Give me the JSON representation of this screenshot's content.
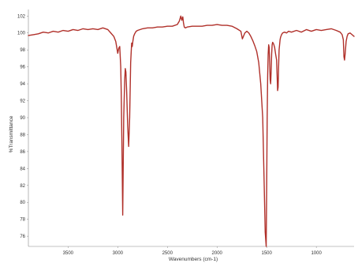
{
  "chart_data": {
    "type": "line",
    "title": "",
    "xlabel": "Wavenumbers (cm-1)",
    "ylabel": "%Transmittance",
    "xlim": [
      3900,
      620
    ],
    "ylim": [
      74.8,
      102.4
    ],
    "x_reversed": true,
    "x_ticks": [
      3500,
      3000,
      2500,
      2000,
      1500,
      1000
    ],
    "y_ticks": [
      76,
      78,
      80,
      82,
      84,
      86,
      88,
      90,
      92,
      94,
      96,
      98,
      100,
      102
    ],
    "grid": false,
    "legend": "none",
    "line_color": "#b0302a",
    "series": [
      {
        "x": [
          3900,
          3850,
          3800,
          3750,
          3700,
          3650,
          3600,
          3550,
          3500,
          3450,
          3400,
          3350,
          3300,
          3250,
          3200,
          3150,
          3100,
          3070,
          3040,
          3020,
          3000,
          2990,
          2980,
          2970,
          2965,
          2958,
          2950,
          2940,
          2930,
          2924,
          2918,
          2910,
          2900,
          2890,
          2880,
          2870,
          2860,
          2854,
          2848,
          2840,
          2830,
          2815,
          2800,
          2750,
          2700,
          2650,
          2600,
          2550,
          2500,
          2450,
          2400,
          2380,
          2365,
          2355,
          2345,
          2338,
          2330,
          2320,
          2300,
          2250,
          2200,
          2150,
          2100,
          2050,
          2000,
          1950,
          1900,
          1850,
          1800,
          1760,
          1745,
          1720,
          1700,
          1680,
          1660,
          1640,
          1620,
          1600,
          1580,
          1560,
          1540,
          1525,
          1515,
          1505,
          1500,
          1495,
          1490,
          1485,
          1480,
          1475,
          1470,
          1465,
          1460,
          1455,
          1450,
          1445,
          1440,
          1430,
          1420,
          1410,
          1400,
          1395,
          1390,
          1385,
          1380,
          1375,
          1370,
          1365,
          1360,
          1350,
          1340,
          1320,
          1300,
          1280,
          1250,
          1200,
          1150,
          1100,
          1050,
          1000,
          950,
          900,
          850,
          800,
          760,
          740,
          728,
          722,
          716,
          710,
          700,
          690,
          680,
          660,
          640,
          620
        ],
        "y": [
          99.7,
          99.8,
          99.9,
          100.1,
          100.0,
          100.2,
          100.1,
          100.3,
          100.2,
          100.4,
          100.3,
          100.5,
          100.4,
          100.5,
          100.4,
          100.6,
          100.4,
          100.0,
          99.6,
          99.0,
          97.6,
          98.2,
          98.4,
          96.0,
          93.0,
          87.0,
          78.5,
          90.0,
          94.5,
          95.8,
          95.4,
          93.0,
          89.0,
          86.6,
          90.0,
          96.5,
          98.8,
          98.4,
          99.0,
          99.6,
          99.9,
          100.2,
          100.3,
          100.5,
          100.6,
          100.6,
          100.7,
          100.7,
          100.8,
          100.8,
          101.0,
          101.4,
          102.0,
          101.5,
          101.9,
          101.2,
          100.7,
          100.6,
          100.7,
          100.8,
          100.8,
          100.8,
          100.9,
          100.9,
          101.0,
          100.9,
          100.9,
          100.8,
          100.5,
          100.2,
          99.3,
          100.0,
          100.2,
          100.0,
          99.6,
          99.1,
          98.5,
          97.8,
          96.5,
          94.0,
          90.0,
          82.0,
          76.5,
          74.8,
          82.0,
          90.0,
          95.0,
          97.5,
          98.6,
          98.3,
          96.5,
          94.5,
          94.0,
          95.5,
          97.5,
          98.6,
          98.9,
          98.7,
          98.3,
          97.5,
          96.8,
          95.0,
          93.2,
          93.6,
          96.0,
          98.0,
          98.6,
          99.2,
          99.5,
          99.8,
          100.0,
          100.1,
          100.0,
          100.2,
          100.1,
          100.3,
          100.1,
          100.4,
          100.2,
          100.4,
          100.3,
          100.4,
          100.5,
          100.3,
          100.1,
          99.8,
          99.2,
          97.2,
          96.8,
          97.5,
          99.0,
          99.6,
          99.9,
          100.0,
          99.8,
          99.6
        ]
      }
    ]
  }
}
